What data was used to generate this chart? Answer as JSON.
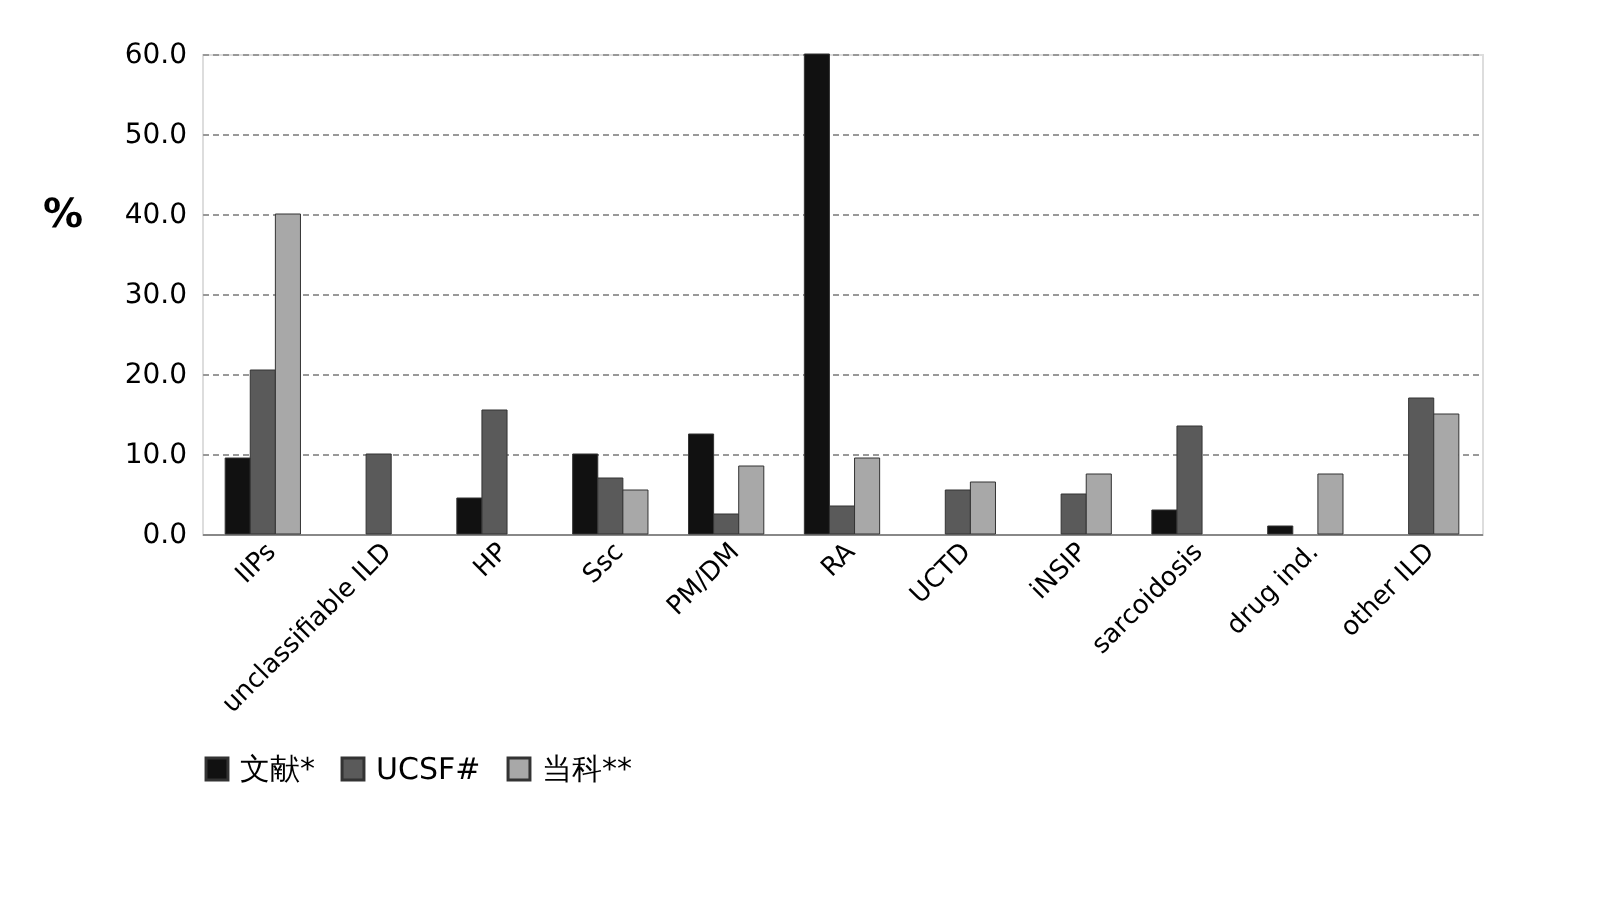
{
  "chart_data": {
    "type": "bar",
    "ylabel": "%",
    "categories": [
      "IIPs",
      "unclassifiable ILD",
      "HP",
      "Ssc",
      "PM/DM",
      "RA",
      "UCTD",
      "iNSIP",
      "sarcoidosis",
      "drug ind.",
      "other ILD"
    ],
    "series": [
      {
        "name": "文献*",
        "color": "#111111",
        "values": [
          9.5,
          null,
          4.5,
          10,
          12.5,
          60,
          null,
          null,
          3,
          1,
          null
        ]
      },
      {
        "name": "UCSF#",
        "color": "#5a5a5a",
        "values": [
          20.5,
          10,
          15.5,
          7,
          2.5,
          3.5,
          5.5,
          5,
          13.5,
          null,
          17
        ]
      },
      {
        "name": "当科**",
        "color": "#a8a8a8",
        "values": [
          40,
          null,
          null,
          5.5,
          8.5,
          9.5,
          6.5,
          7.5,
          null,
          7.5,
          15
        ]
      }
    ],
    "ylim": [
      0,
      60
    ],
    "yticks": [
      {
        "value": 0,
        "label": "0.0"
      },
      {
        "value": 10,
        "label": "10.0"
      },
      {
        "value": 20,
        "label": "20.0"
      },
      {
        "value": 30,
        "label": "30.0"
      },
      {
        "value": 40,
        "label": "40.0"
      },
      {
        "value": 50,
        "label": "50.0"
      },
      {
        "value": 60,
        "label": "60.0"
      }
    ],
    "grid": "y",
    "legend": "bottom"
  }
}
